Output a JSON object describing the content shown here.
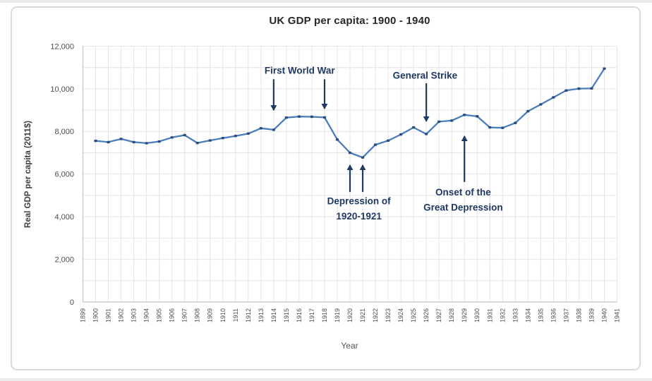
{
  "chart_data": {
    "type": "line",
    "title": "UK GDP per capita: 1900 - 1940",
    "xlabel": "Year",
    "ylabel": "Real GDP per capita (2011$)",
    "xlim": [
      1899,
      1941
    ],
    "ylim": [
      0,
      12000
    ],
    "grid": {
      "horizontal_step": 1000,
      "vertical_step_years": 1,
      "color": "#e4e4e4",
      "axis_color": "#c4c4c4"
    },
    "legend": "none",
    "x": [
      1900,
      1901,
      1902,
      1903,
      1904,
      1905,
      1906,
      1907,
      1908,
      1909,
      1910,
      1911,
      1912,
      1913,
      1914,
      1915,
      1916,
      1917,
      1918,
      1919,
      1920,
      1921,
      1922,
      1923,
      1924,
      1925,
      1926,
      1927,
      1928,
      1929,
      1930,
      1931,
      1932,
      1933,
      1934,
      1935,
      1936,
      1937,
      1938,
      1939,
      1940
    ],
    "series": [
      {
        "name": "Real GDP per capita (2011$)",
        "line_color": "#4a7ebc",
        "marker_color": "#2c4d7e",
        "values": [
          7560,
          7500,
          7650,
          7500,
          7450,
          7530,
          7720,
          7830,
          7460,
          7580,
          7690,
          7790,
          7900,
          8150,
          8080,
          8650,
          8700,
          8690,
          8660,
          7620,
          7000,
          6780,
          7380,
          7570,
          7860,
          8190,
          7880,
          8460,
          8510,
          8780,
          8710,
          8190,
          8170,
          8400,
          8950,
          9270,
          9600,
          9920,
          10010,
          10020,
          10950
        ]
      }
    ],
    "x_tick_labels": [
      "1899",
      "1900",
      "1901",
      "1902",
      "1903",
      "1904",
      "1905",
      "1906",
      "1907",
      "1908",
      "1909",
      "1910",
      "1911",
      "1912",
      "1913",
      "1914",
      "1915",
      "1916",
      "1917",
      "1918",
      "1919",
      "1920",
      "1921",
      "1922",
      "1923",
      "1924",
      "1925",
      "1926",
      "1927",
      "1928",
      "1929",
      "1930",
      "1931",
      "1932",
      "1933",
      "1934",
      "1935",
      "1936",
      "1937",
      "1938",
      "1939",
      "1940",
      "1941"
    ],
    "y_tick_values": [
      0,
      2000,
      4000,
      6000,
      8000,
      10000,
      12000
    ],
    "y_tick_labels": [
      "0",
      "2,000",
      "4,000",
      "6,000",
      "8,000",
      "10,000",
      "12,000"
    ],
    "annotation_color": "#1f3864",
    "annotations": [
      {
        "text_lines": [
          "First World War"
        ],
        "at": {
          "year": 1916.05,
          "value": 10860
        },
        "arrows": [
          {
            "year": 1914,
            "value_from": 10450,
            "value_to": 9000
          },
          {
            "year": 1918,
            "value_from": 10450,
            "value_to": 9070
          }
        ]
      },
      {
        "text_lines": [
          "General Strike"
        ],
        "at": {
          "year": 1925.9,
          "value": 10630
        },
        "arrows": [
          {
            "year": 1926,
            "value_from": 10260,
            "value_to": 8480
          }
        ]
      },
      {
        "text_lines": [
          "Depression of",
          "1920-1921"
        ],
        "at": {
          "year": 1920.7,
          "value": 4390
        },
        "arrows": [
          {
            "year": 1920,
            "value_from": 5160,
            "value_to": 6420
          },
          {
            "year": 1921,
            "value_from": 5160,
            "value_to": 6420
          }
        ]
      },
      {
        "text_lines": [
          "Onset of the",
          "Great Depression"
        ],
        "at": {
          "year": 1928.9,
          "value": 4800
        },
        "arrows": [
          {
            "year": 1929,
            "value_from": 5630,
            "value_to": 7780
          }
        ]
      }
    ]
  }
}
